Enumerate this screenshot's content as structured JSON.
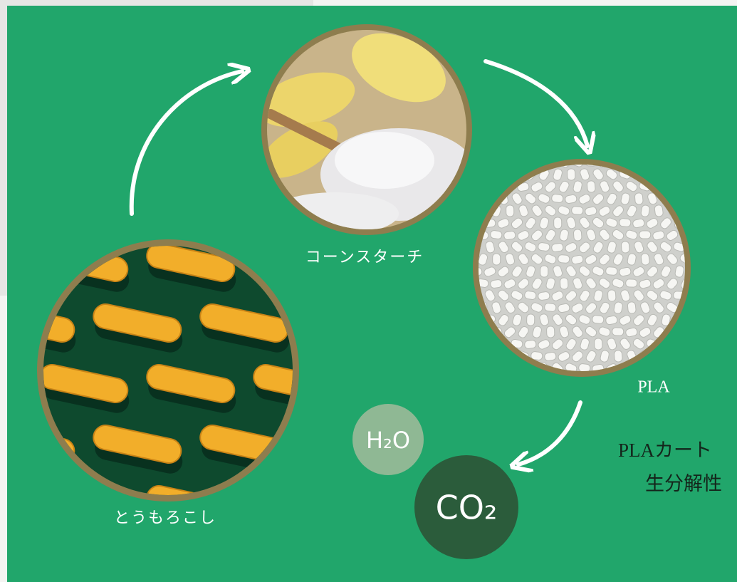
{
  "nodes": [
    {
      "label": "とうもろこし"
    },
    {
      "label": "コーンスターチ"
    },
    {
      "label": "PLA"
    }
  ],
  "molecules": [
    "H₂O",
    "CO₂"
  ],
  "caption": [
    "PLAカート",
    "生分解性"
  ]
}
